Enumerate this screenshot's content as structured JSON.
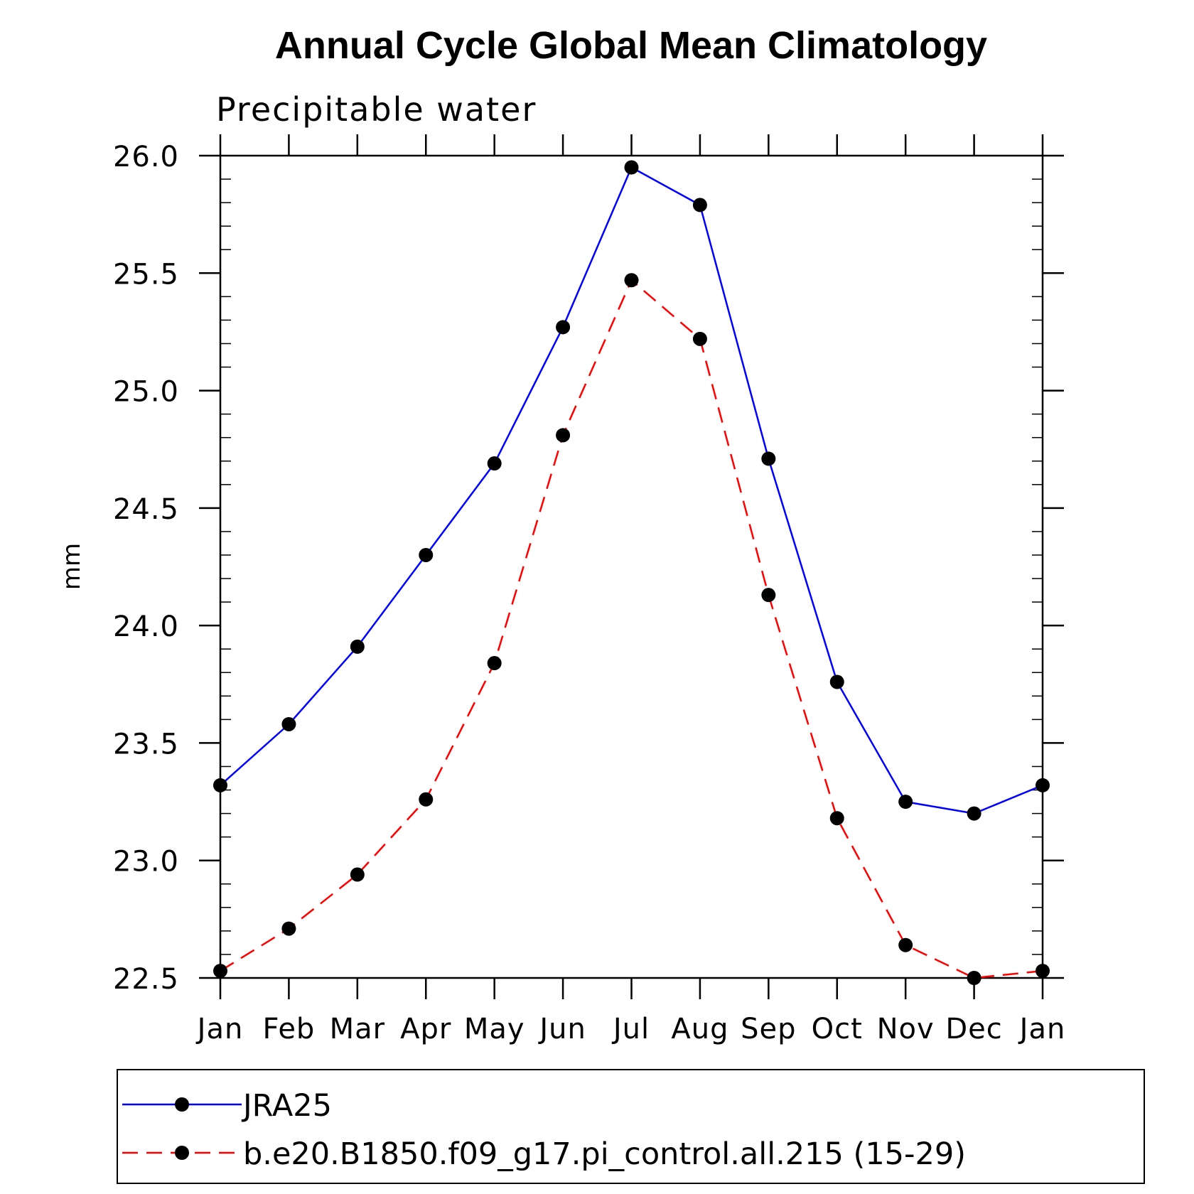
{
  "chart_data": {
    "type": "line",
    "title": "Annual Cycle Global Mean Climatology",
    "subtitle": "Precipitable water",
    "xlabel": "",
    "ylabel": "mm",
    "categories": [
      "Jan",
      "Feb",
      "Mar",
      "Apr",
      "May",
      "Jun",
      "Jul",
      "Aug",
      "Sep",
      "Oct",
      "Nov",
      "Dec",
      "Jan"
    ],
    "ylim": [
      22.5,
      26.0
    ],
    "yticks": [
      "22.5",
      "23.0",
      "23.5",
      "24.0",
      "24.5",
      "25.0",
      "25.5",
      "26.0"
    ],
    "grid": false,
    "legend_position": "bottom",
    "series": [
      {
        "name": "JRA25",
        "color": "#0000ff",
        "dash": "solid",
        "marker": "filled-circle",
        "values": [
          23.32,
          23.58,
          23.91,
          24.3,
          24.69,
          25.27,
          25.95,
          25.79,
          24.71,
          23.76,
          23.25,
          23.2,
          23.32
        ]
      },
      {
        "name": "b.e20.B1850.f09_g17.pi_control.all.215 (15-29)",
        "color": "#ff0000",
        "dash": "dashed",
        "marker": "filled-circle",
        "values": [
          22.53,
          22.71,
          22.94,
          23.26,
          23.84,
          24.81,
          25.47,
          25.22,
          24.13,
          23.18,
          22.64,
          22.5,
          22.53
        ]
      }
    ]
  }
}
